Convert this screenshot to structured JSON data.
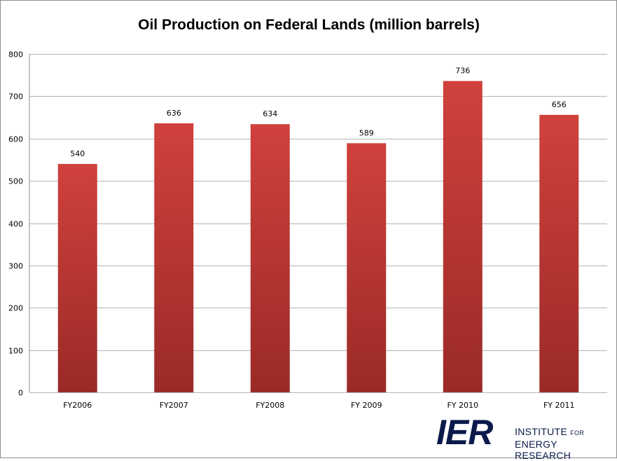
{
  "chart_data": {
    "type": "bar",
    "title": "Oil Production on Federal Lands (million barrels)",
    "xlabel": "",
    "ylabel": "",
    "categories": [
      "FY2006",
      "FY2007",
      "FY2008",
      "FY 2009",
      "FY 2010",
      "FY 2011"
    ],
    "values": [
      540,
      636,
      634,
      589,
      736,
      656
    ],
    "data_labels": [
      "540",
      "636",
      "634",
      "589",
      "736",
      "656"
    ],
    "ylim": [
      0,
      800
    ],
    "yticks": [
      0,
      100,
      200,
      300,
      400,
      500,
      600,
      700,
      800
    ],
    "ytick_labels": [
      "0",
      "100",
      "200",
      "300",
      "400",
      "500",
      "600",
      "700",
      "800"
    ],
    "grid": true,
    "legend": "none",
    "colors": {
      "bar_top": "#d0413c",
      "bar_bottom": "#9a2a27"
    }
  },
  "logo": {
    "letters": "IER",
    "line1_main": "INSTITUTE",
    "line1_small": "FOR",
    "line2": "ENERGY RESEARCH",
    "color": "#0b1a4a"
  }
}
